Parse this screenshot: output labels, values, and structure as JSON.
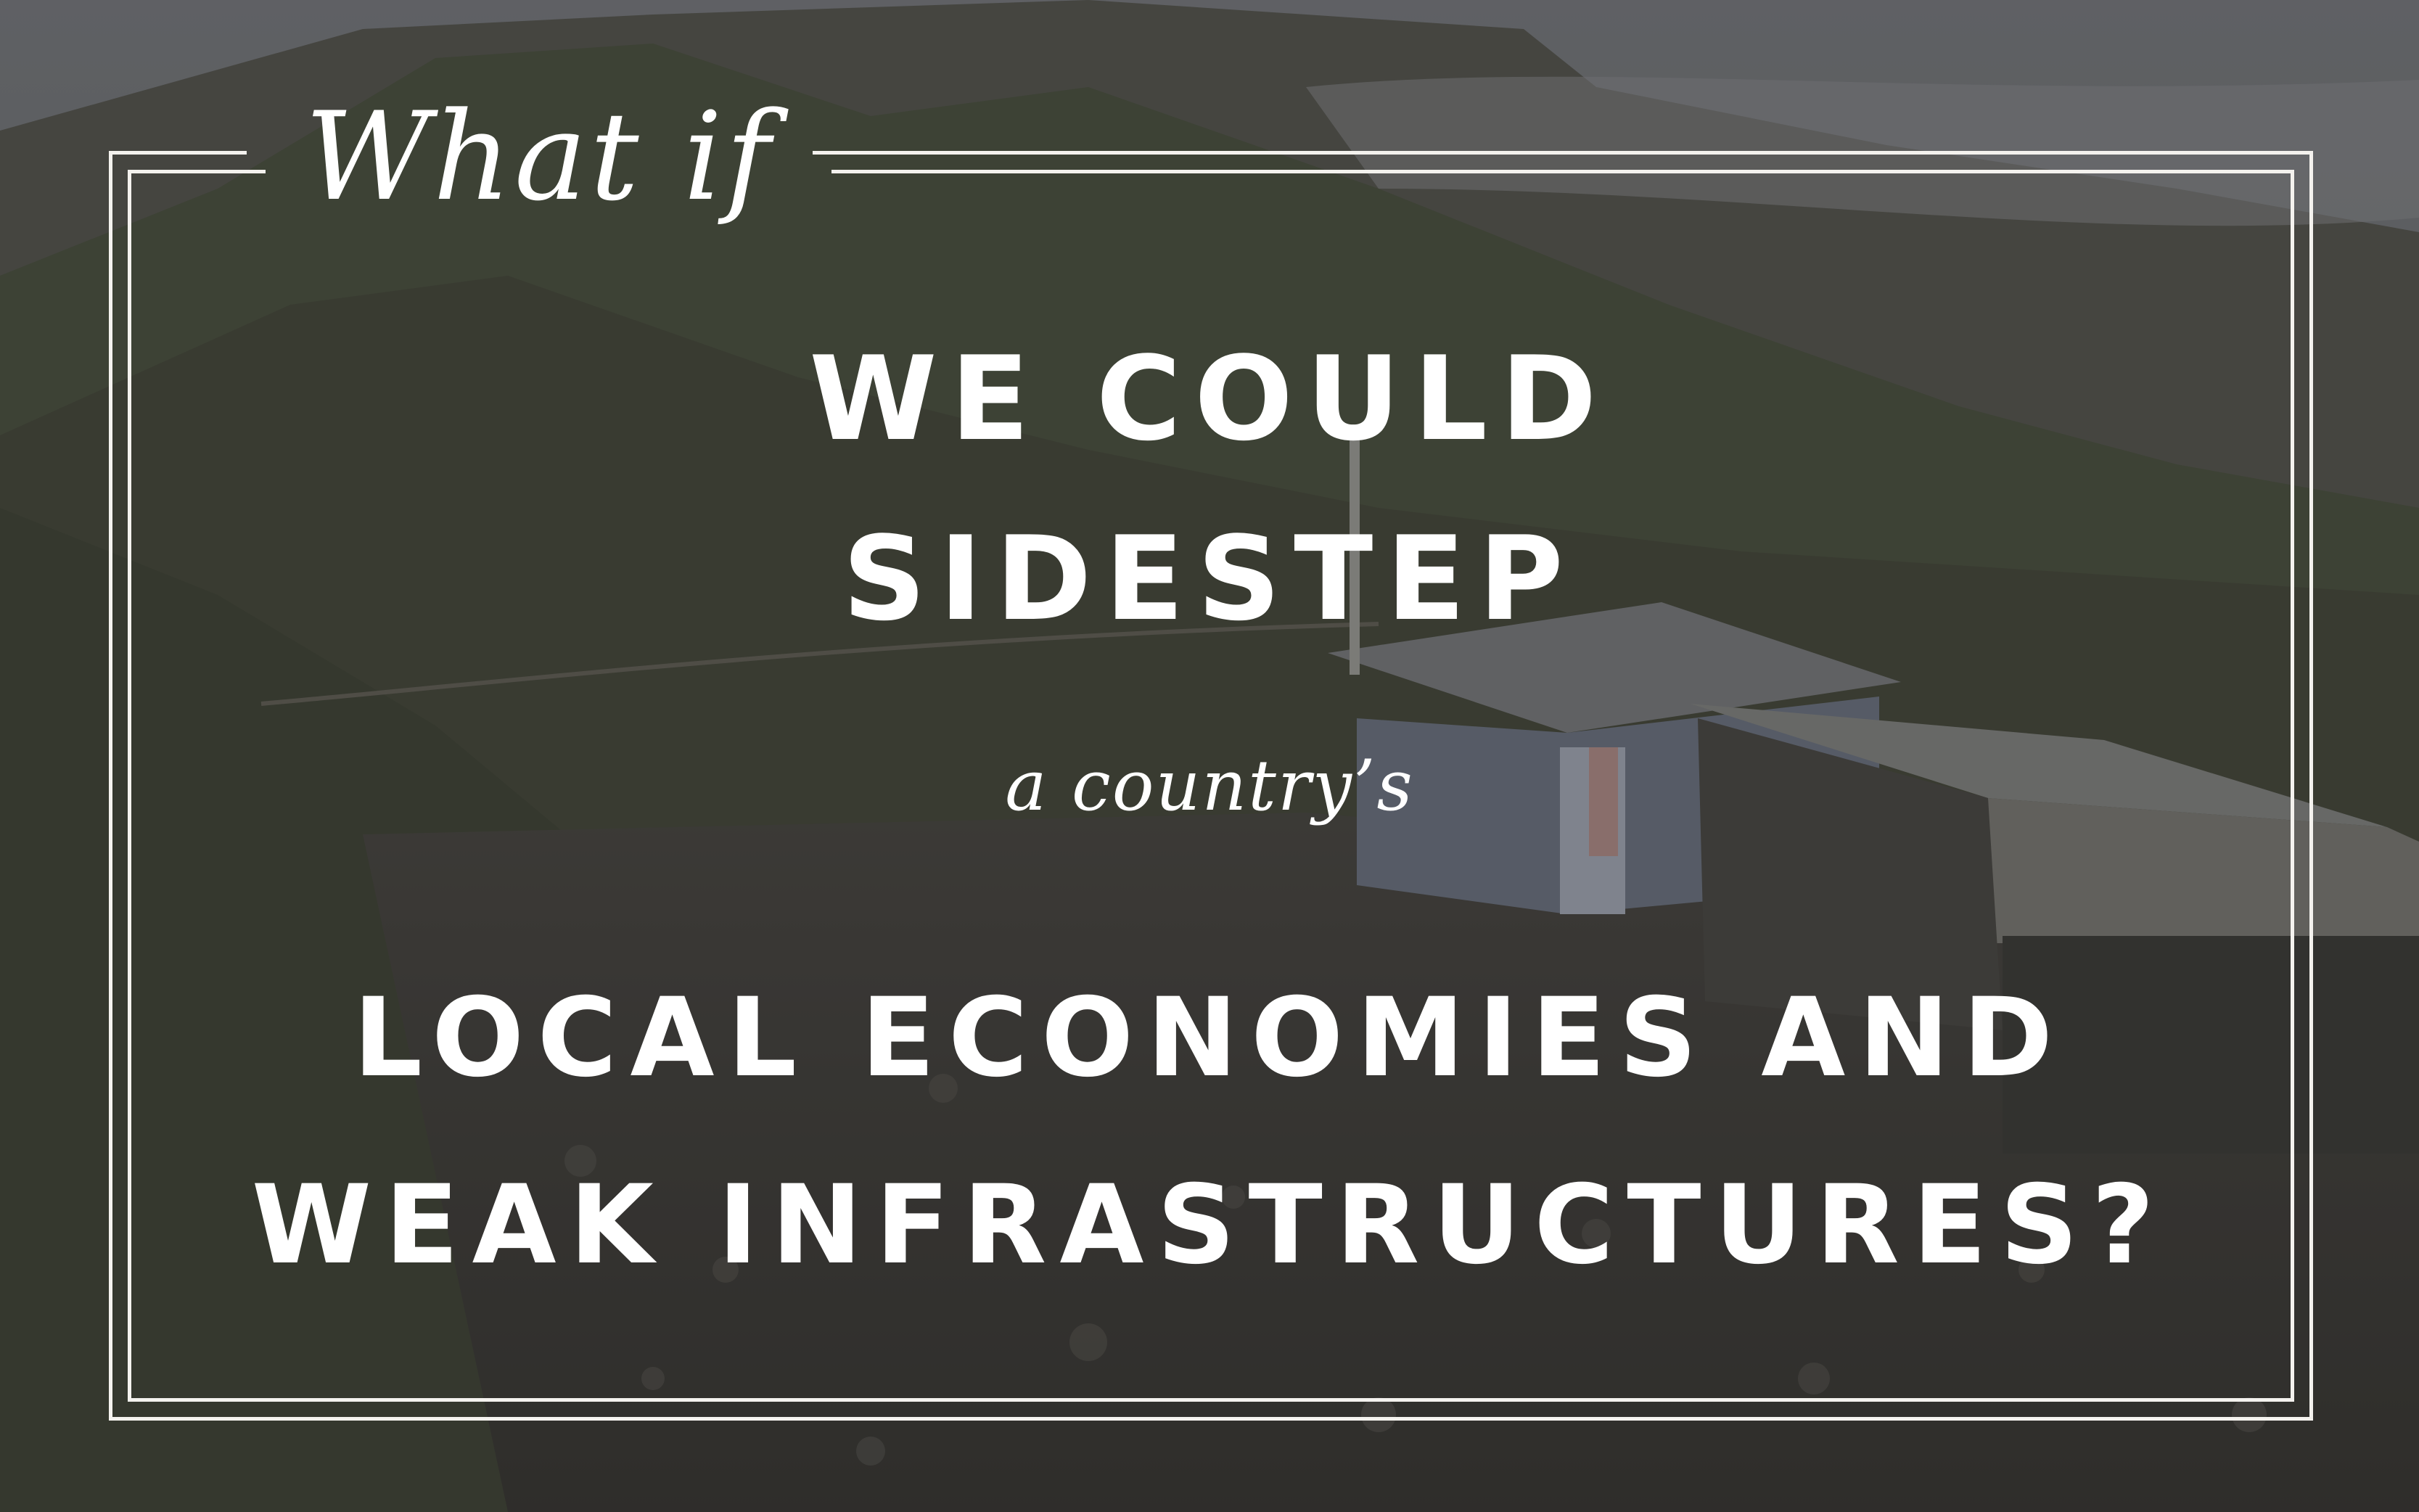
{
  "intro": "What if",
  "headline": {
    "line1": "WE COULD",
    "line2": "SIDESTEP",
    "connector": "a country’s",
    "line3": "LOCAL ECONOMIES AND",
    "line4": "WEAK INFRASTRUCTURES?"
  },
  "colors": {
    "text": "#ffffff",
    "frame": "#f4f2ee",
    "overlay": "#2b2a28"
  }
}
